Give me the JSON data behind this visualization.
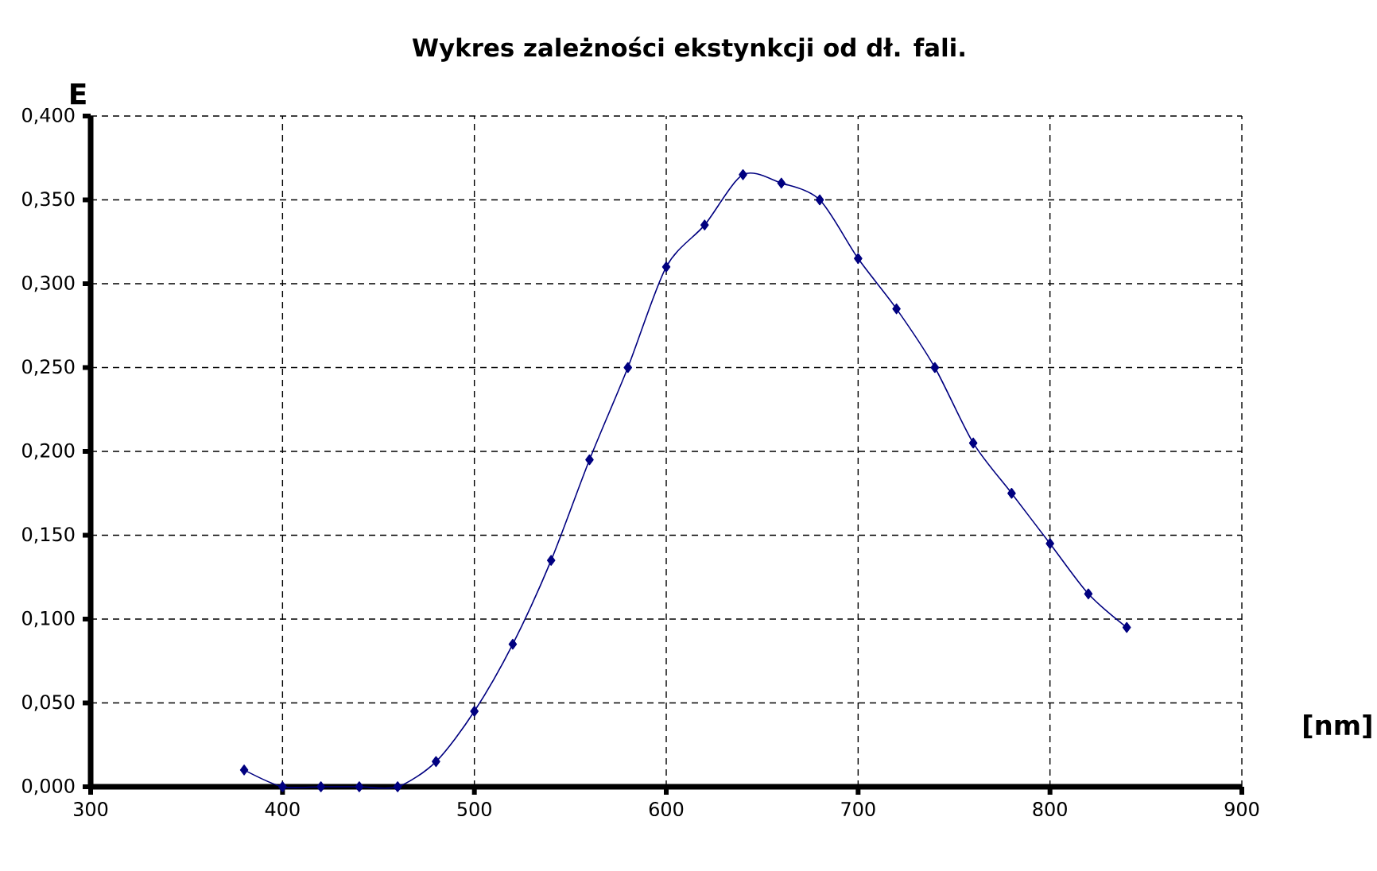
{
  "chart_data": {
    "type": "line",
    "title": "Wykres zależności ekstynkcji od dł. fali.",
    "xlabel": "[nm]",
    "ylabel": "E",
    "x": [
      380,
      400,
      420,
      440,
      460,
      480,
      500,
      520,
      540,
      560,
      580,
      600,
      620,
      640,
      660,
      680,
      700,
      720,
      740,
      760,
      780,
      800,
      820,
      840
    ],
    "series": [
      {
        "color": "#000080",
        "values": [
          0.01,
          0,
          0,
          0,
          0,
          0.015,
          0.045,
          0.085,
          0.135,
          0.195,
          0.25,
          0.31,
          0.335,
          0.365,
          0.36,
          0.35,
          0.315,
          0.285,
          0.25,
          0.205,
          0.175,
          0.145,
          0.115,
          0.095
        ]
      }
    ],
    "xlim": [
      300,
      900
    ],
    "ylim": [
      0,
      0.4
    ],
    "xticks": [
      300,
      400,
      500,
      600,
      700,
      800,
      900
    ],
    "yticks": [
      {
        "value": 0,
        "label": "0,000"
      },
      {
        "value": 0.05,
        "label": "0,050"
      },
      {
        "value": 0.1,
        "label": "0,100"
      },
      {
        "value": 0.15,
        "label": "0,150"
      },
      {
        "value": 0.2,
        "label": "0,200"
      },
      {
        "value": 0.25,
        "label": "0,250"
      },
      {
        "value": 0.3,
        "label": "0,300"
      },
      {
        "value": 0.35,
        "label": "0,350"
      },
      {
        "value": 0.4,
        "label": "0,400"
      }
    ],
    "grid": true,
    "marker": "diamond",
    "line_style": "solid"
  }
}
